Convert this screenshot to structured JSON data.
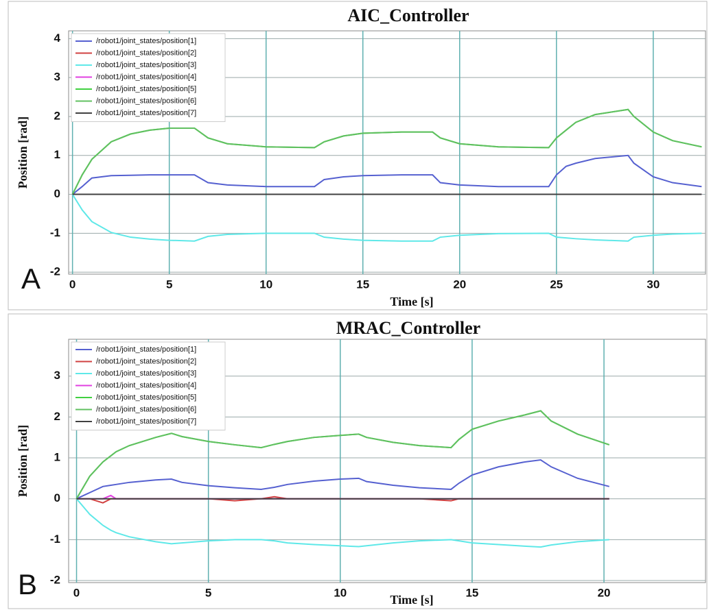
{
  "chart_data": [
    {
      "type": "line",
      "title": "AIC_Controller",
      "panel_label": "A",
      "xlabel": "Time [s]",
      "ylabel": "Position [rad]",
      "x": [
        0,
        0.5,
        1,
        2,
        3,
        4,
        5,
        6.3,
        7,
        8,
        10,
        12.5,
        13,
        14,
        15,
        17,
        18.6,
        19,
        20,
        22,
        24.6,
        25,
        25.5,
        26,
        27,
        28.7,
        29,
        30,
        31,
        32.5
      ],
      "xlim": [
        -0.2,
        32.7
      ],
      "ylim": [
        -2.05,
        4.2
      ],
      "xticks": [
        0,
        5,
        10,
        15,
        20,
        25,
        30
      ],
      "yticks": [
        -2,
        -1,
        0,
        1,
        2,
        3,
        4
      ],
      "grid": true,
      "legend": "upper left",
      "series": [
        {
          "name": "/robot1/joint_states/position[1]",
          "color": "#5560d0",
          "values": [
            0,
            0.2,
            0.42,
            0.48,
            0.49,
            0.5,
            0.5,
            0.5,
            0.3,
            0.24,
            0.2,
            0.2,
            0.38,
            0.45,
            0.48,
            0.5,
            0.5,
            0.3,
            0.24,
            0.2,
            0.2,
            0.5,
            0.72,
            0.8,
            0.92,
            1.0,
            0.8,
            0.45,
            0.3,
            0.2
          ]
        },
        {
          "name": "/robot1/joint_states/position[2]",
          "color": "#d04040",
          "values": [
            0,
            0,
            0,
            0,
            0,
            0,
            0,
            0,
            0,
            0,
            0,
            0,
            0,
            0,
            0,
            0,
            0,
            0,
            0,
            0,
            0,
            0,
            0,
            0,
            0,
            0,
            0,
            0,
            0,
            0
          ]
        },
        {
          "name": "/robot1/joint_states/position[3]",
          "color": "#5ee8e8",
          "values": [
            0,
            -0.4,
            -0.7,
            -0.98,
            -1.1,
            -1.15,
            -1.18,
            -1.2,
            -1.08,
            -1.03,
            -1.0,
            -1.0,
            -1.1,
            -1.15,
            -1.18,
            -1.2,
            -1.2,
            -1.1,
            -1.05,
            -1.01,
            -1.0,
            -1.1,
            -1.12,
            -1.14,
            -1.17,
            -1.2,
            -1.1,
            -1.05,
            -1.02,
            -1.0
          ]
        },
        {
          "name": "/robot1/joint_states/position[4]",
          "color": "#e040e0",
          "values": [
            0,
            0,
            0,
            0,
            0,
            0,
            0,
            0,
            0,
            0,
            0,
            0,
            0,
            0,
            0,
            0,
            0,
            0,
            0,
            0,
            0,
            0,
            0,
            0,
            0,
            0,
            0,
            0,
            0,
            0
          ]
        },
        {
          "name": "/robot1/joint_states/position[5]",
          "color": "#40d040",
          "values": [
            0,
            0.5,
            0.9,
            1.35,
            1.55,
            1.65,
            1.7,
            1.7,
            1.45,
            1.3,
            1.22,
            1.2,
            1.35,
            1.5,
            1.57,
            1.6,
            1.6,
            1.45,
            1.3,
            1.22,
            1.2,
            1.45,
            1.65,
            1.85,
            2.05,
            2.18,
            2.0,
            1.6,
            1.38,
            1.22
          ]
        },
        {
          "name": "/robot1/joint_states/position[6]",
          "color": "#60c060",
          "values": [
            0,
            0.5,
            0.9,
            1.35,
            1.55,
            1.65,
            1.7,
            1.7,
            1.45,
            1.3,
            1.22,
            1.2,
            1.35,
            1.5,
            1.57,
            1.6,
            1.6,
            1.45,
            1.3,
            1.22,
            1.2,
            1.45,
            1.65,
            1.85,
            2.05,
            2.18,
            2.0,
            1.6,
            1.38,
            1.22
          ]
        },
        {
          "name": "/robot1/joint_states/position[7]",
          "color": "#404040",
          "values": [
            0,
            0,
            0,
            0,
            0,
            0,
            0,
            0,
            0,
            0,
            0,
            0,
            0,
            0,
            0,
            0,
            0,
            0,
            0,
            0,
            0,
            0,
            0,
            0,
            0,
            0,
            0,
            0,
            0,
            0
          ]
        }
      ]
    },
    {
      "type": "line",
      "title": "MRAC_Controller",
      "panel_label": "B",
      "xlabel": "Time [s]",
      "ylabel": "Position [rad]",
      "x": [
        0,
        0.5,
        1,
        1.3,
        1.5,
        2,
        3,
        3.6,
        4,
        5,
        6,
        7,
        7.5,
        8,
        9,
        10,
        10.7,
        11,
        12,
        13,
        14.2,
        14.5,
        15,
        16,
        17,
        17.6,
        18,
        19,
        20.2
      ],
      "xlim": [
        -0.3,
        23.85
      ],
      "ylim": [
        -2.05,
        3.9
      ],
      "xticks": [
        0,
        5,
        10,
        15,
        20
      ],
      "yticks": [
        -2,
        -1,
        0,
        1,
        2,
        3
      ],
      "grid": true,
      "legend": "upper left",
      "series": [
        {
          "name": "/robot1/joint_states/position[1]",
          "color": "#5560d0",
          "values": [
            0,
            0.15,
            0.3,
            0.33,
            0.35,
            0.4,
            0.46,
            0.48,
            0.4,
            0.32,
            0.27,
            0.23,
            0.28,
            0.35,
            0.43,
            0.48,
            0.5,
            0.42,
            0.33,
            0.27,
            0.23,
            0.38,
            0.58,
            0.78,
            0.9,
            0.95,
            0.78,
            0.5,
            0.3
          ]
        },
        {
          "name": "/robot1/joint_states/position[2]",
          "color": "#d04040",
          "values": [
            0,
            0,
            -0.1,
            0,
            0,
            0,
            0,
            0,
            0,
            0,
            -0.05,
            0,
            0.05,
            0,
            0,
            0,
            0,
            0,
            0,
            0,
            -0.05,
            0,
            0,
            0,
            0,
            0,
            0,
            0,
            0
          ]
        },
        {
          "name": "/robot1/joint_states/position[3]",
          "color": "#5ee8e8",
          "values": [
            0,
            -0.38,
            -0.65,
            -0.77,
            -0.83,
            -0.93,
            -1.05,
            -1.1,
            -1.08,
            -1.03,
            -1.0,
            -1.0,
            -1.03,
            -1.08,
            -1.12,
            -1.15,
            -1.17,
            -1.15,
            -1.08,
            -1.03,
            -1.0,
            -1.03,
            -1.08,
            -1.12,
            -1.16,
            -1.18,
            -1.13,
            -1.05,
            -1.0
          ]
        },
        {
          "name": "/robot1/joint_states/position[4]",
          "color": "#e040e0",
          "values": [
            0,
            0,
            0,
            0.08,
            0,
            0,
            0,
            0,
            0,
            0,
            0,
            0,
            0,
            0,
            0,
            0,
            0,
            0,
            0,
            0,
            0,
            0,
            0,
            0,
            0,
            0,
            0,
            0,
            0
          ]
        },
        {
          "name": "/robot1/joint_states/position[5]",
          "color": "#40d040",
          "values": [
            0,
            0.55,
            0.9,
            1.05,
            1.15,
            1.3,
            1.5,
            1.6,
            1.52,
            1.4,
            1.32,
            1.25,
            1.33,
            1.4,
            1.5,
            1.55,
            1.58,
            1.5,
            1.38,
            1.3,
            1.25,
            1.45,
            1.7,
            1.9,
            2.05,
            2.15,
            1.9,
            1.58,
            1.32
          ]
        },
        {
          "name": "/robot1/joint_states/position[6]",
          "color": "#60c060",
          "values": [
            0,
            0.55,
            0.9,
            1.05,
            1.15,
            1.3,
            1.5,
            1.6,
            1.52,
            1.4,
            1.32,
            1.25,
            1.33,
            1.4,
            1.5,
            1.55,
            1.58,
            1.5,
            1.38,
            1.3,
            1.25,
            1.45,
            1.7,
            1.9,
            2.05,
            2.15,
            1.9,
            1.58,
            1.32
          ]
        },
        {
          "name": "/robot1/joint_states/position[7]",
          "color": "#404040",
          "values": [
            0,
            0,
            0,
            0,
            0,
            0,
            0,
            0,
            0,
            0,
            0,
            0,
            0,
            0,
            0,
            0,
            0,
            0,
            0,
            0,
            0,
            0,
            0,
            0,
            0,
            0,
            0,
            0,
            0
          ]
        }
      ]
    }
  ]
}
